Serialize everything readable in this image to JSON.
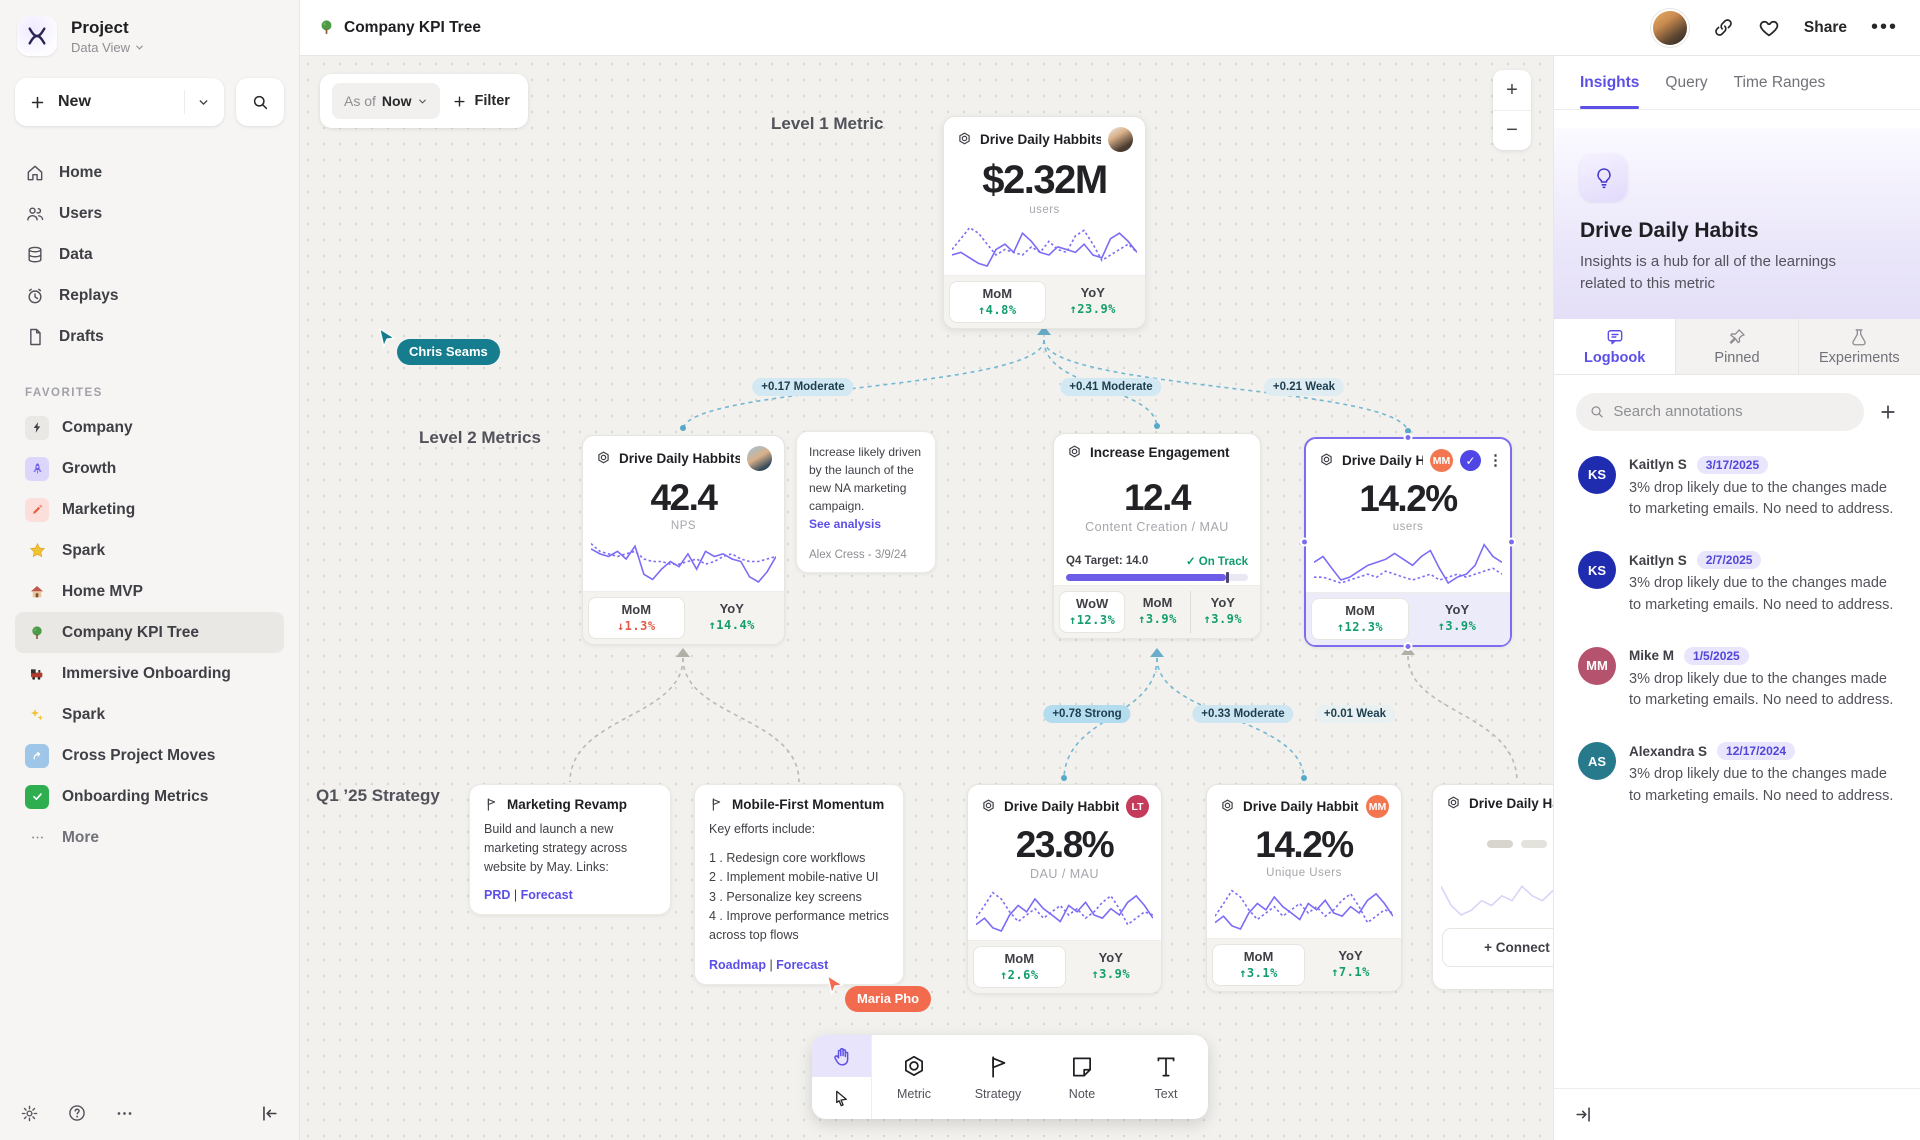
{
  "sidebar": {
    "project_name": "Project",
    "project_view": "Data View",
    "new_label": "New",
    "nav": [
      {
        "label": "Home"
      },
      {
        "label": "Users"
      },
      {
        "label": "Data"
      },
      {
        "label": "Replays"
      },
      {
        "label": "Drafts"
      }
    ],
    "favorites_label": "FAVORITES",
    "favorites": [
      {
        "label": "Company"
      },
      {
        "label": "Growth"
      },
      {
        "label": "Marketing"
      },
      {
        "label": "Spark"
      },
      {
        "label": "Home MVP"
      },
      {
        "label": "Company KPI Tree"
      },
      {
        "label": "Immersive Onboarding"
      },
      {
        "label": "Spark"
      },
      {
        "label": "Cross Project Moves"
      },
      {
        "label": "Onboarding Metrics"
      }
    ],
    "more_label": "More"
  },
  "topbar": {
    "title": "Company KPI Tree",
    "share_label": "Share"
  },
  "canvas": {
    "asof_prefix": "As of",
    "asof_value": "Now",
    "filter_label": "Filter",
    "level_labels": [
      "Level 1 Metric",
      "Level 2 Metrics",
      "Q1 ’25 Strategy"
    ],
    "accent": "#7b6cf6",
    "cards": [
      {
        "title": "Drive Daily Habbits",
        "value": "$2.32M",
        "unit": "users",
        "cells": [
          {
            "label": "MoM",
            "delta": "↑4.8%",
            "color": "#149e6d"
          },
          {
            "label": "YoY",
            "delta": "↑23.9%",
            "color": "#149e6d"
          }
        ],
        "spark": {
          "color": "#7b6cf6",
          "solid": [
            8,
            9,
            7,
            5,
            4,
            10,
            12,
            9,
            16,
            13,
            9,
            8,
            11,
            10,
            9,
            12,
            8,
            7,
            14,
            16,
            13,
            9
          ],
          "dotted": [
            10,
            14,
            18,
            16,
            12,
            8,
            10,
            9,
            8,
            11,
            9,
            13,
            10,
            9,
            15,
            17,
            12,
            6,
            8,
            10,
            12,
            9
          ]
        }
      },
      {
        "title": "Drive Daily Habbits",
        "value": "42.4",
        "unit": "NPS",
        "cells": [
          {
            "label": "MoM",
            "delta": "↓1.3%",
            "color": "#e25c49"
          },
          {
            "label": "YoY",
            "delta": "↑14.4%",
            "color": "#149e6d"
          }
        ],
        "spark": {
          "color": "#7b6cf6",
          "solid": [
            18,
            16,
            15,
            17,
            14,
            19,
            8,
            6,
            10,
            13,
            11,
            16,
            10,
            17,
            15,
            16,
            14,
            13,
            7,
            5,
            9,
            15
          ],
          "dotted": [
            20,
            17,
            16,
            15,
            16,
            17,
            14,
            13,
            13,
            12,
            12,
            13,
            14,
            12,
            13,
            15,
            16,
            14,
            13,
            13,
            14,
            15
          ]
        }
      },
      {
        "title": "Increase Engagement",
        "value": "12.4",
        "unit": "Content Creation / MAU",
        "target_label": "Q4 Target:",
        "target_value": "14.0",
        "target_status": "✓ On Track",
        "target_status_color": "#0e9d6e",
        "target_pct": 88,
        "cells": [
          {
            "label": "WoW",
            "delta": "↑12.3%",
            "color": "#149e6d"
          },
          {
            "label": "MoM",
            "delta": "↑3.9%",
            "color": "#149e6d"
          },
          {
            "label": "YoY",
            "delta": "↑3.9%",
            "color": "#149e6d"
          }
        ]
      },
      {
        "title": "Drive Daily Habb..",
        "badge": "MM",
        "badge_color": "#f4764f",
        "value": "14.2%",
        "unit": "users",
        "cells": [
          {
            "label": "MoM",
            "delta": "↑12.3%",
            "color": "#149e6d"
          },
          {
            "label": "YoY",
            "delta": "↑3.9%",
            "color": "#149e6d"
          }
        ],
        "spark": {
          "color": "#7b6cf6",
          "solid": [
            14,
            16,
            12,
            8,
            9,
            11,
            13,
            14,
            15,
            17,
            15,
            13,
            16,
            18,
            12,
            7,
            9,
            10,
            13,
            20,
            16,
            14
          ],
          "dotted": [
            9,
            9,
            8,
            7,
            8,
            9,
            10,
            9,
            11,
            10,
            9,
            8,
            9,
            10,
            8,
            9,
            10,
            9,
            10,
            11,
            12,
            10
          ]
        }
      },
      {
        "title": "Drive Daily Habbits",
        "badge": "LT",
        "badge_color": "#c43b5c",
        "value": "23.8%",
        "unit": "DAU / MAU",
        "cells": [
          {
            "label": "MoM",
            "delta": "↑2.6%",
            "color": "#149e6d"
          },
          {
            "label": "YoY",
            "delta": "↑3.9%",
            "color": "#149e6d"
          }
        ],
        "spark": {
          "color": "#7b6cf6",
          "solid": [
            6,
            8,
            5,
            4,
            9,
            12,
            10,
            14,
            11,
            9,
            7,
            12,
            10,
            13,
            9,
            8,
            11,
            9,
            13,
            15,
            12,
            8
          ],
          "dotted": [
            8,
            12,
            16,
            14,
            10,
            7,
            9,
            11,
            8,
            10,
            12,
            9,
            11,
            8,
            10,
            13,
            15,
            11,
            6,
            8,
            10,
            9
          ]
        }
      },
      {
        "title": "Drive Daily Habbits",
        "badge": "MM",
        "badge_color": "#f4764f",
        "value": "14.2%",
        "unit": "Unique Users",
        "cells": [
          {
            "label": "MoM",
            "delta": "↑3.1%",
            "color": "#149e6d"
          },
          {
            "label": "YoY",
            "delta": "↑7.1%",
            "color": "#149e6d"
          }
        ],
        "spark": {
          "color": "#7b6cf6",
          "solid": [
            6,
            8,
            5,
            4,
            9,
            12,
            10,
            14,
            11,
            9,
            7,
            12,
            10,
            13,
            9,
            8,
            11,
            9,
            13,
            15,
            12,
            8
          ],
          "dotted": [
            8,
            12,
            16,
            14,
            10,
            7,
            9,
            11,
            8,
            10,
            12,
            9,
            11,
            8,
            10,
            13,
            15,
            11,
            6,
            8,
            10,
            9
          ]
        }
      },
      {
        "title": "Drive Daily Hab",
        "connect_label": "+ Connect",
        "spark": {
          "color": "#d9d4f8",
          "solid": [
            12,
            8,
            6,
            7,
            9,
            8,
            10,
            9,
            12,
            10,
            9,
            11,
            10,
            12,
            14,
            9
          ]
        }
      }
    ],
    "notes": {
      "annotation": {
        "body": "Increase likely driven by the launch of the new NA marketing campaign.",
        "link": "See analysis",
        "author": "Alex Cress - 3/9/24"
      },
      "marketing": {
        "title": "Marketing Revamp",
        "body": "Build and launch a new marketing strategy across website by May. Links:",
        "link1": "PRD",
        "link2": "Forecast"
      },
      "mobile": {
        "title": "Mobile-First Momentum",
        "intro": "Key efforts include:",
        "items": [
          "1 .  Redesign core workflows",
          "2 .  Implement mobile-native UI",
          "3 .  Personalize key screens",
          "4 .  Improve performance metrics across top flows"
        ],
        "link1": "Roadmap",
        "link2": "Forecast"
      }
    },
    "edges": [
      {
        "label": "+0.17 Moderate",
        "bg": "#d2e8f2"
      },
      {
        "label": "+0.41 Moderate",
        "bg": "#d2e8f2"
      },
      {
        "label": "+0.21 Weak",
        "bg": "#dfecf2"
      },
      {
        "label": "+0.78 Strong",
        "bg": "#b4dcef"
      },
      {
        "label": "+0.33 Moderate",
        "bg": "#cde6f1"
      },
      {
        "label": "+0.01 Weak",
        "bg": "#e9f0f2"
      }
    ],
    "cursors": [
      {
        "name": "Chris Seams",
        "color": "#157d8d"
      },
      {
        "name": "Maria Pho",
        "color": "#f26b4e"
      }
    ],
    "tools": [
      {
        "label": "Metric"
      },
      {
        "label": "Strategy"
      },
      {
        "label": "Note"
      },
      {
        "label": "Text"
      }
    ]
  },
  "panel": {
    "tabs": [
      {
        "label": "Insights"
      },
      {
        "label": "Query"
      },
      {
        "label": "Time Ranges"
      }
    ],
    "title": "Drive Daily Habits",
    "description": "Insights is a hub for all of the learnings related to this metric",
    "subtabs": [
      {
        "label": "Logbook"
      },
      {
        "label": "Pinned"
      },
      {
        "label": "Experiments"
      }
    ],
    "search_placeholder": "Search annotations",
    "annotations": [
      {
        "initials": "KS",
        "color": "#1f2cb0",
        "name": "Kaitlyn S",
        "date": "3/17/2025",
        "text": "3% drop likely due to the changes made to marketing emails. No need to address."
      },
      {
        "initials": "KS",
        "color": "#1f2cb0",
        "name": "Kaitlyn S",
        "date": "2/7/2025",
        "text": "3% drop likely due to the changes made to marketing emails. No need to address."
      },
      {
        "initials": "MM",
        "color": "#b5526d",
        "name": "Mike M",
        "date": "1/5/2025",
        "text": "3% drop likely due to the changes made to marketing emails. No need to address."
      },
      {
        "initials": "AS",
        "color": "#27798c",
        "name": "Alexandra S",
        "date": "12/17/2024",
        "text": "3% drop likely due to the changes made to marketing emails. No need to address."
      }
    ]
  }
}
